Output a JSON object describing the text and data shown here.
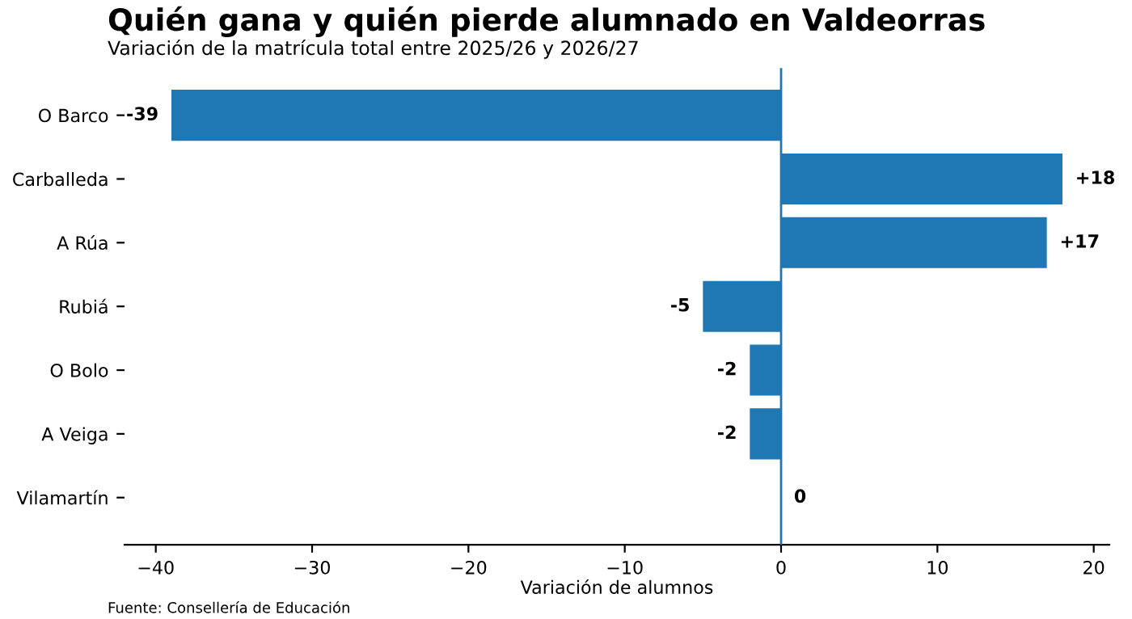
{
  "chart_data": {
    "type": "bar",
    "orientation": "horizontal",
    "title": "Quién gana y quién pierde alumnado en Valdeorras",
    "subtitle": "Variación de la matrícula total entre 2025/26 y 2026/27",
    "xlabel": "Variación de alumnos",
    "categories": [
      "O Barco",
      "Carballeda",
      "A Rúa",
      "Rubiá",
      "O Bolo",
      "A Veiga",
      "Vilamartín"
    ],
    "values": [
      -39,
      18,
      17,
      -5,
      -2,
      -2,
      0
    ],
    "value_labels": [
      "-39",
      "+18",
      "+17",
      "-5",
      "-2",
      "-2",
      "0"
    ],
    "color": "#1f77b4",
    "xlim": [
      -42,
      21
    ],
    "xticks": [
      {
        "value": -40,
        "label": "−40"
      },
      {
        "value": -30,
        "label": "−30"
      },
      {
        "value": -20,
        "label": "−20"
      },
      {
        "value": -10,
        "label": "−10"
      },
      0,
      10,
      20
    ],
    "ref_lines": [
      {
        "axis": "x",
        "value": 0,
        "color": "#1f77b4"
      }
    ],
    "grid": false,
    "legend": false,
    "annotations": [
      "Fuente: Consellería de Educación"
    ]
  }
}
